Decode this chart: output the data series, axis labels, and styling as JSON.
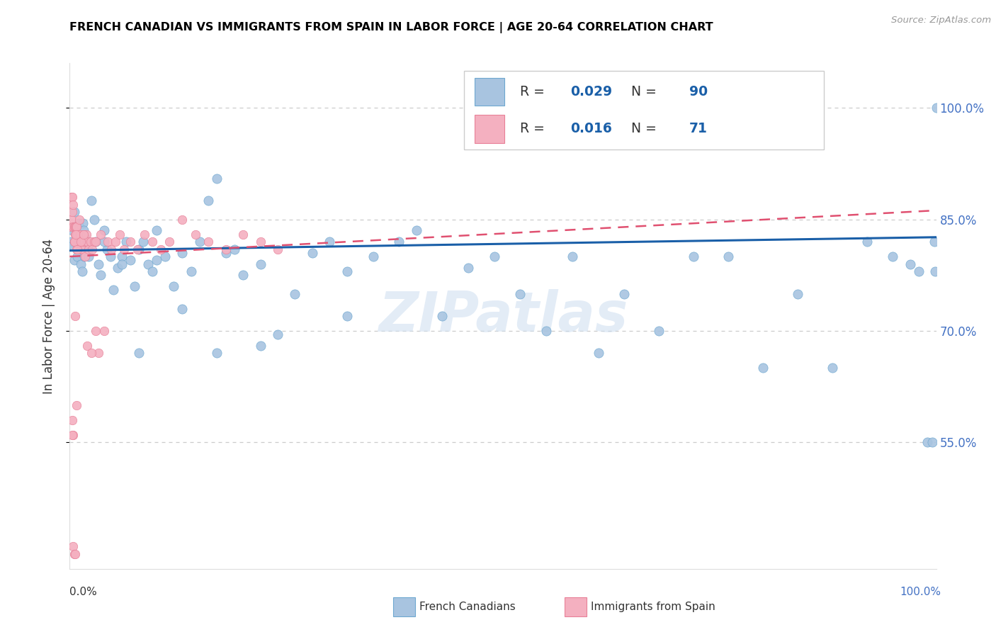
{
  "title": "FRENCH CANADIAN VS IMMIGRANTS FROM SPAIN IN LABOR FORCE | AGE 20-64 CORRELATION CHART",
  "source": "Source: ZipAtlas.com",
  "ylabel": "In Labor Force | Age 20-64",
  "ytick_values": [
    0.55,
    0.7,
    0.85,
    1.0
  ],
  "ytick_labels": [
    "55.0%",
    "70.0%",
    "85.0%",
    "100.0%"
  ],
  "xlim": [
    0.0,
    1.0
  ],
  "ylim": [
    0.38,
    1.06
  ],
  "blue_fill": "#A8C4E0",
  "blue_edge": "#6EA8D0",
  "pink_fill": "#F4B0C0",
  "pink_edge": "#E88098",
  "trendline_blue": "#1a5fa8",
  "trendline_pink": "#e05070",
  "legend_R_blue": "0.029",
  "legend_N_blue": "90",
  "legend_R_pink": "0.016",
  "legend_N_pink": "71",
  "watermark": "ZIPatlas",
  "blue_trend": [
    0.808,
    0.826
  ],
  "pink_trend": [
    0.8,
    0.862
  ],
  "blue_x": [
    0.002,
    0.003,
    0.004,
    0.005,
    0.005,
    0.006,
    0.007,
    0.008,
    0.009,
    0.01,
    0.011,
    0.012,
    0.013,
    0.014,
    0.015,
    0.016,
    0.017,
    0.018,
    0.019,
    0.02,
    0.022,
    0.025,
    0.028,
    0.03,
    0.033,
    0.036,
    0.04,
    0.043,
    0.047,
    0.05,
    0.055,
    0.06,
    0.065,
    0.07,
    0.075,
    0.08,
    0.085,
    0.09,
    0.095,
    0.1,
    0.11,
    0.12,
    0.13,
    0.14,
    0.15,
    0.16,
    0.17,
    0.18,
    0.19,
    0.2,
    0.22,
    0.24,
    0.26,
    0.28,
    0.3,
    0.32,
    0.35,
    0.38,
    0.4,
    0.43,
    0.46,
    0.49,
    0.52,
    0.55,
    0.58,
    0.61,
    0.64,
    0.68,
    0.72,
    0.76,
    0.8,
    0.84,
    0.88,
    0.92,
    0.95,
    0.97,
    0.98,
    0.99,
    0.995,
    0.998,
    0.999,
    1.0,
    0.04,
    0.06,
    0.08,
    0.1,
    0.13,
    0.17,
    0.22,
    0.32
  ],
  "blue_y": [
    0.82,
    0.835,
    0.815,
    0.86,
    0.795,
    0.84,
    0.82,
    0.83,
    0.8,
    0.845,
    0.815,
    0.825,
    0.79,
    0.78,
    0.845,
    0.835,
    0.8,
    0.825,
    0.815,
    0.81,
    0.8,
    0.875,
    0.85,
    0.82,
    0.79,
    0.775,
    0.835,
    0.81,
    0.8,
    0.755,
    0.785,
    0.8,
    0.82,
    0.795,
    0.76,
    0.81,
    0.82,
    0.79,
    0.78,
    0.835,
    0.8,
    0.76,
    0.805,
    0.78,
    0.82,
    0.875,
    0.905,
    0.805,
    0.81,
    0.775,
    0.79,
    0.695,
    0.75,
    0.805,
    0.82,
    0.78,
    0.8,
    0.82,
    0.835,
    0.72,
    0.785,
    0.8,
    0.75,
    0.7,
    0.8,
    0.67,
    0.75,
    0.7,
    0.8,
    0.8,
    0.65,
    0.75,
    0.65,
    0.82,
    0.8,
    0.79,
    0.78,
    0.55,
    0.55,
    0.82,
    0.78,
    1.0,
    0.82,
    0.79,
    0.67,
    0.795,
    0.73,
    0.67,
    0.68,
    0.72
  ],
  "pink_x": [
    0.001,
    0.002,
    0.002,
    0.003,
    0.003,
    0.004,
    0.004,
    0.005,
    0.005,
    0.006,
    0.006,
    0.007,
    0.007,
    0.008,
    0.008,
    0.009,
    0.009,
    0.01,
    0.011,
    0.012,
    0.013,
    0.014,
    0.015,
    0.016,
    0.017,
    0.018,
    0.019,
    0.02,
    0.022,
    0.024,
    0.026,
    0.028,
    0.03,
    0.033,
    0.036,
    0.04,
    0.044,
    0.048,
    0.053,
    0.058,
    0.063,
    0.07,
    0.078,
    0.086,
    0.095,
    0.105,
    0.115,
    0.13,
    0.145,
    0.16,
    0.18,
    0.2,
    0.22,
    0.24,
    0.005,
    0.007,
    0.009,
    0.011,
    0.013,
    0.016,
    0.02,
    0.025,
    0.03,
    0.003,
    0.004,
    0.006,
    0.008,
    0.003,
    0.004,
    0.005,
    0.006
  ],
  "pink_y": [
    0.84,
    0.88,
    0.85,
    0.88,
    0.86,
    0.87,
    0.84,
    0.84,
    0.82,
    0.84,
    0.83,
    0.84,
    0.82,
    0.84,
    0.81,
    0.82,
    0.83,
    0.82,
    0.82,
    0.83,
    0.81,
    0.82,
    0.81,
    0.83,
    0.82,
    0.8,
    0.83,
    0.82,
    0.81,
    0.82,
    0.81,
    0.82,
    0.7,
    0.67,
    0.83,
    0.7,
    0.82,
    0.81,
    0.82,
    0.83,
    0.81,
    0.82,
    0.81,
    0.83,
    0.82,
    0.81,
    0.82,
    0.85,
    0.83,
    0.82,
    0.81,
    0.83,
    0.82,
    0.81,
    0.82,
    0.83,
    0.81,
    0.85,
    0.82,
    0.83,
    0.68,
    0.67,
    0.82,
    0.58,
    0.56,
    0.72,
    0.6,
    0.56,
    0.41,
    0.4,
    0.4
  ]
}
